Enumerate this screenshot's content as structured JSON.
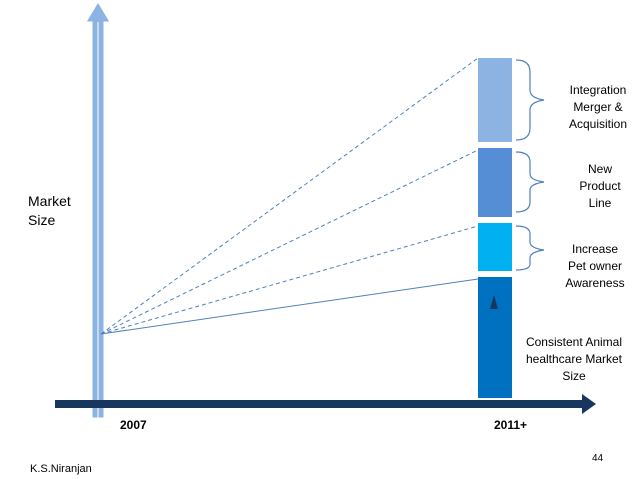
{
  "axis": {
    "y_label": [
      "Market",
      "Size"
    ],
    "x_start": "2007",
    "x_end": "2011+"
  },
  "segments": [
    {
      "label": [
        "Integration",
        "Merger &",
        "Acquisition"
      ]
    },
    {
      "label": [
        "New",
        "Product",
        "Line"
      ]
    },
    {
      "label": [
        "Increase",
        "Pet owner",
        "Awareness"
      ]
    },
    {
      "label": [
        "Consistent  Animal",
        "healthcare Market",
        "Size"
      ]
    }
  ],
  "page_number": "44",
  "author": "K.S.Niranjan"
}
